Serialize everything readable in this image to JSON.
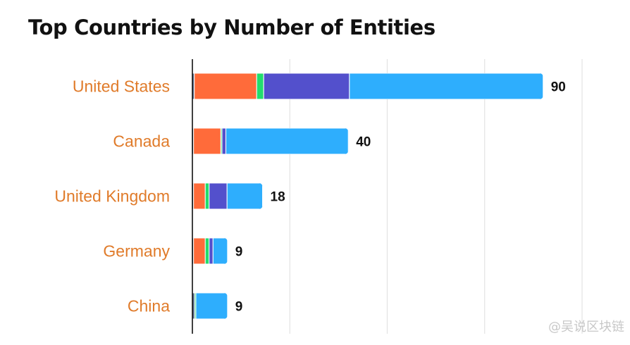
{
  "chart_data": {
    "type": "bar",
    "orientation": "horizontal",
    "stacked": true,
    "title": "Top Countries by Number of Entities",
    "categories": [
      "United States",
      "Canada",
      "United Kingdom",
      "Germany",
      "China"
    ],
    "totals": [
      90,
      40,
      18,
      9,
      9
    ],
    "series": [
      {
        "color": "#5a6e8c",
        "values": [
          0.5,
          0.3,
          0.3,
          0.3,
          0.6
        ]
      },
      {
        "color": "#ff6b3a",
        "values": [
          16.0,
          7.0,
          3.0,
          3.0,
          0.0
        ]
      },
      {
        "color": "#22dd6e",
        "values": [
          1.8,
          0.3,
          1.0,
          1.0,
          0.3
        ]
      },
      {
        "color": "#5350cc",
        "values": [
          22.0,
          1.0,
          4.6,
          1.0,
          0.0
        ]
      },
      {
        "color": "#2eaefd",
        "values": [
          49.7,
          31.4,
          9.1,
          3.7,
          8.1
        ]
      }
    ],
    "xlim": [
      0,
      100
    ],
    "grid": true,
    "legend": "none",
    "label_color": "#e07b2a"
  },
  "watermark": "@吴说区块链"
}
